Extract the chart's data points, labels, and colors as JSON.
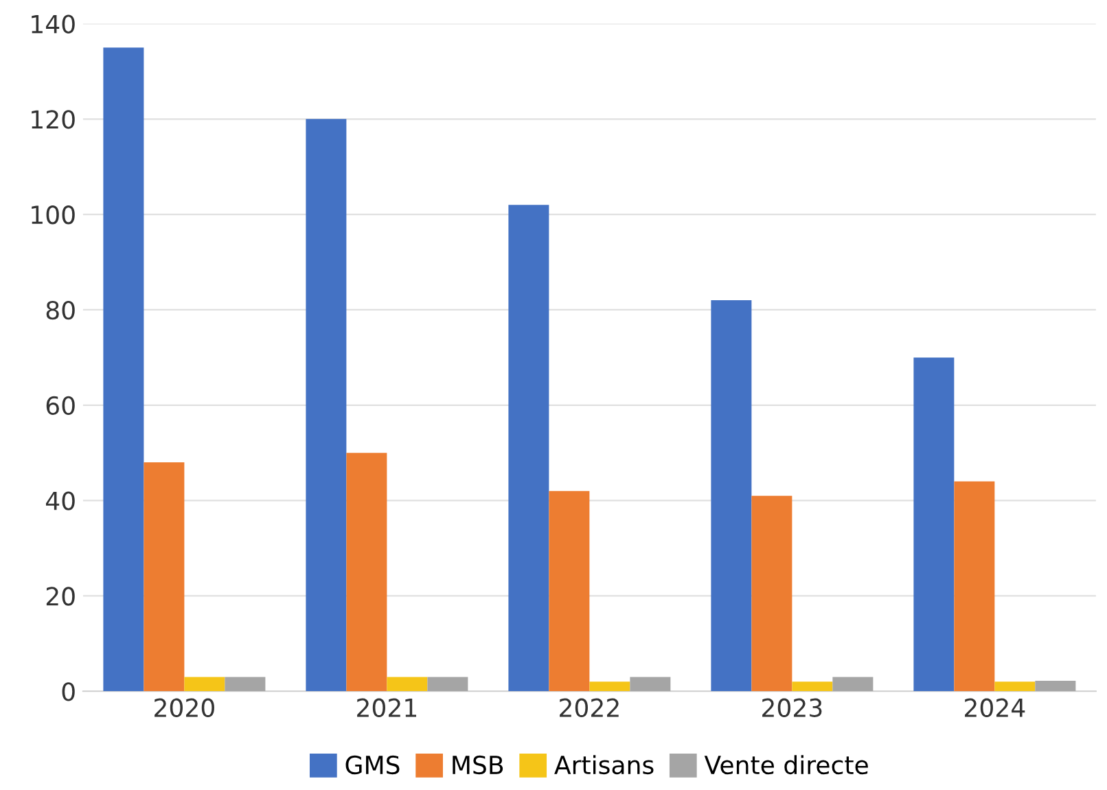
{
  "chart_data": {
    "type": "bar",
    "categories": [
      "2020",
      "2021",
      "2022",
      "2023",
      "2024"
    ],
    "series": [
      {
        "name": "GMS",
        "color": "#4472c4",
        "values": [
          135,
          120,
          102,
          82,
          70
        ]
      },
      {
        "name": "MSB",
        "color": "#ed7d31",
        "values": [
          48,
          50,
          42,
          41,
          44
        ]
      },
      {
        "name": "Artisans",
        "color": "#f5c518",
        "values": [
          3,
          3,
          2,
          2,
          2
        ]
      },
      {
        "name": "Vente directe",
        "color": "#a5a5a5",
        "values": [
          3,
          3,
          3,
          3,
          2.2
        ]
      }
    ],
    "ylim": [
      0,
      140
    ],
    "yticks": [
      0,
      20,
      40,
      60,
      80,
      100,
      120,
      140
    ],
    "grid": "y",
    "legend": "bottom"
  }
}
